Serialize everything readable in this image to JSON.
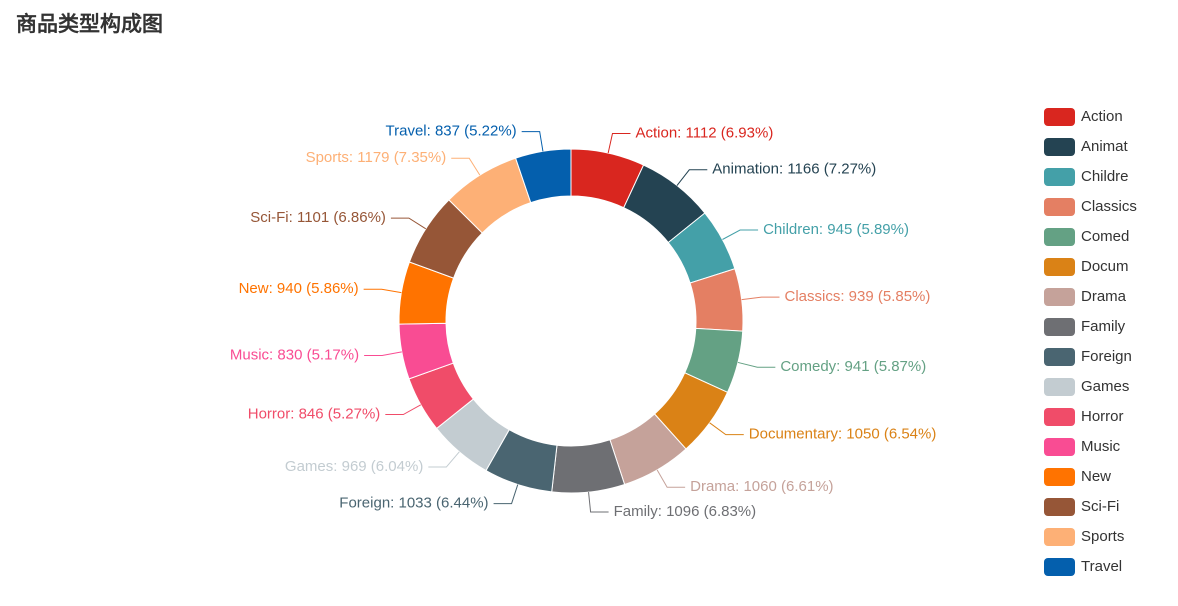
{
  "chart_data": {
    "type": "pie",
    "variant": "donut",
    "title": "商品类型构成图",
    "legend_position": "right",
    "categories": [
      "Action",
      "Animation",
      "Children",
      "Classics",
      "Comedy",
      "Documentary",
      "Drama",
      "Family",
      "Foreign",
      "Games",
      "Horror",
      "Music",
      "New",
      "Sci-Fi",
      "Sports",
      "Travel"
    ],
    "values": [
      1112,
      1166,
      945,
      939,
      941,
      1050,
      1060,
      1096,
      1033,
      969,
      846,
      830,
      940,
      1101,
      1179,
      837
    ],
    "percentages": [
      6.93,
      7.27,
      5.89,
      5.85,
      5.87,
      6.54,
      6.61,
      6.83,
      6.44,
      6.04,
      5.27,
      5.17,
      5.86,
      6.86,
      7.35,
      5.22
    ],
    "labels": [
      "Action: 1112 (6.93%)",
      "Animation: 1166 (7.27%)",
      "Children: 945 (5.89%)",
      "Classics: 939 (5.85%)",
      "Comedy: 941 (5.87%)",
      "Documentary: 1050 (6.54%)",
      "Drama: 1060 (6.61%)",
      "Family: 1096 (6.83%)",
      "Foreign: 1033 (6.44%)",
      "Games: 969 (6.04%)",
      "Horror: 846 (5.27%)",
      "Music: 830 (5.17%)",
      "New: 940 (5.86%)",
      "Sci-Fi: 1101 (6.86%)",
      "Sports: 1179 (7.35%)",
      "Travel: 837 (5.22%)"
    ],
    "legend": [
      "Action",
      "Animat",
      "Childre",
      "Classics",
      "Comed",
      "Docum",
      "Drama",
      "Family",
      "Foreign",
      "Games",
      "Horror",
      "Music",
      "New",
      "Sci-Fi",
      "Sports",
      "Travel"
    ],
    "colors": [
      "#d9261f",
      "#244352",
      "#44a0a8",
      "#e47f63",
      "#64a184",
      "#da8216",
      "#c5a29a",
      "#6e6f73",
      "#4a6571",
      "#c3ccd1",
      "#f04c69",
      "#f94c93",
      "#ff7300",
      "#965637",
      "#fdb076",
      "#045fad"
    ]
  }
}
